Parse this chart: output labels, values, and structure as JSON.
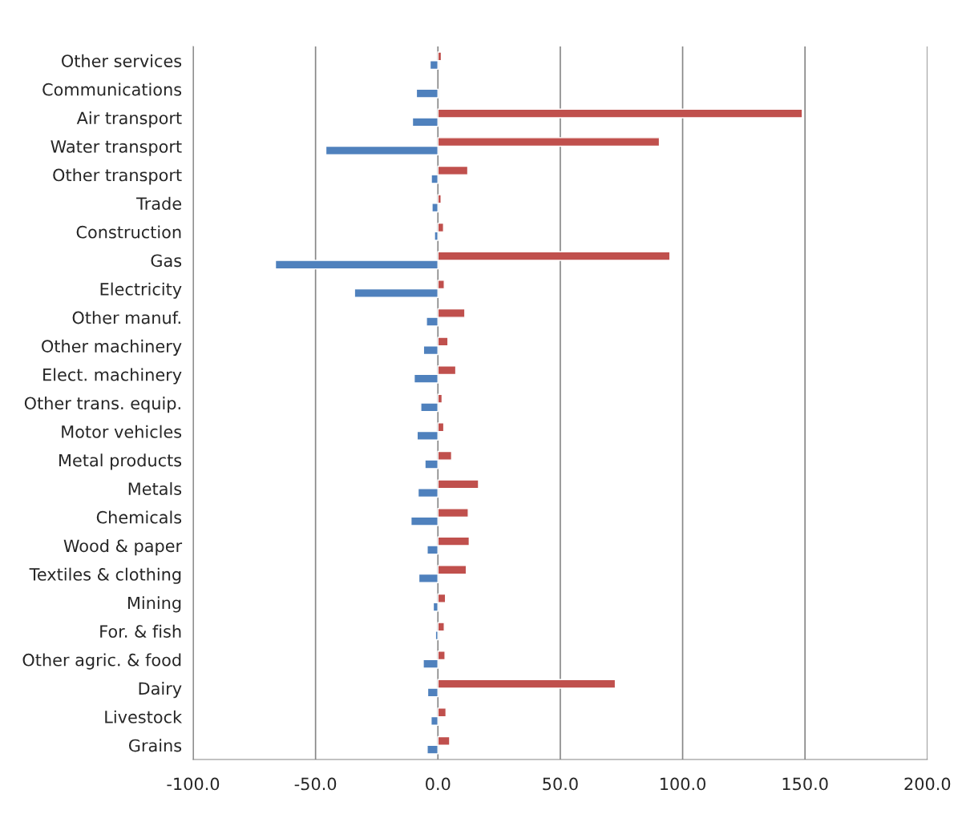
{
  "chart_data": {
    "type": "bar",
    "orientation": "horizontal",
    "categories": [
      "Other services",
      "Communications",
      "Air transport",
      "Water transport",
      "Other transport",
      "Trade",
      "Construction",
      "Gas",
      "Electricity",
      "Other manuf.",
      "Other machinery",
      "Elect. machinery",
      "Other trans. equip.",
      "Motor vehicles",
      "Metal products",
      "Metals",
      "Chemicals",
      "Wood & paper",
      "Textiles & clothing",
      "Mining",
      "For. & fish",
      "Other agric. & food",
      "Dairy",
      "Livestock",
      "Grains"
    ],
    "series": [
      {
        "color": "#c0504d",
        "values": [
          1.4,
          null,
          148.9,
          90.5,
          12.2,
          1.3,
          2.3,
          94.8,
          2.6,
          11.0,
          4.1,
          7.3,
          1.7,
          2.4,
          5.6,
          16.6,
          12.4,
          12.8,
          11.6,
          3.1,
          2.6,
          2.9,
          72.5,
          3.3,
          4.8
        ]
      },
      {
        "color": "#4f81bd",
        "values": [
          -3.2,
          -8.8,
          -10.4,
          -45.8,
          -2.7,
          -2.4,
          -1.4,
          -66.4,
          -34.1,
          -4.7,
          -5.9,
          -9.7,
          -7.0,
          -8.5,
          -5.3,
          -8.1,
          -11.0,
          -4.4,
          -7.8,
          -1.9,
          -1.0,
          -6.0,
          -4.2,
          -2.8,
          -4.4
        ]
      }
    ],
    "xlim": [
      -100,
      200
    ],
    "xticks": [
      {
        "value": -100,
        "label": "-100.0"
      },
      {
        "value": -50,
        "label": "-50.0"
      },
      {
        "value": 0,
        "label": "0.0"
      },
      {
        "value": 50,
        "label": "50.0"
      },
      {
        "value": 100,
        "label": "100.0"
      },
      {
        "value": 150,
        "label": "150.0"
      },
      {
        "value": 200,
        "label": "200.0"
      }
    ],
    "grid": "x"
  }
}
